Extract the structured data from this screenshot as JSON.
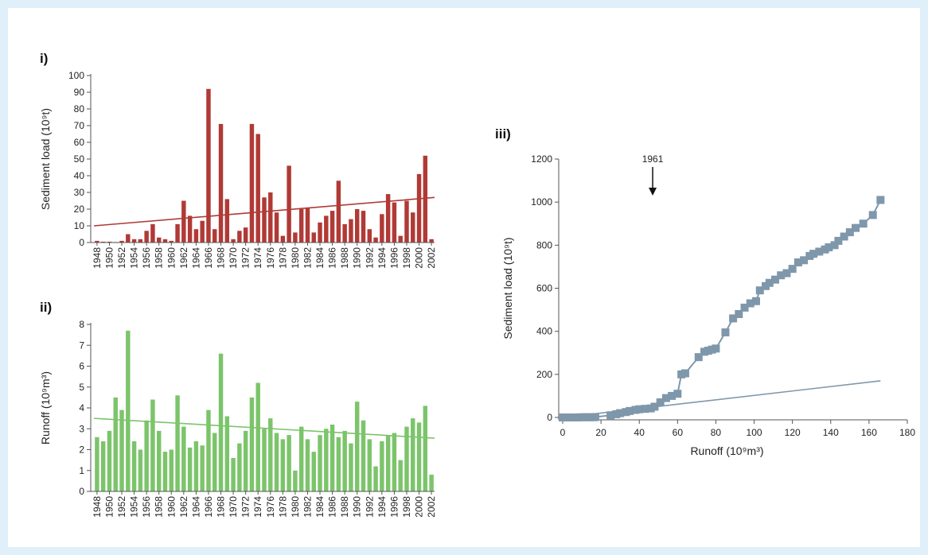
{
  "panels": {
    "i": "i)",
    "ii": "ii)",
    "iii": "iii)"
  },
  "colors": {
    "sediment": "#b03a36",
    "runoff": "#7cc46b",
    "cumulative": "#7f97ab",
    "axis": "#555555"
  },
  "chart_data": [
    {
      "id": "sediment",
      "type": "bar",
      "panel": "i)",
      "ylabel": "Sediment load (10⁹t)",
      "ylim": [
        0,
        100
      ],
      "yticks": [
        0,
        10,
        20,
        30,
        40,
        50,
        60,
        70,
        80,
        90,
        100
      ],
      "xtick_labels": [
        "1948",
        "1950",
        "1952",
        "1954",
        "1956",
        "1958",
        "1960",
        "1962",
        "1964",
        "1966",
        "1968",
        "1970",
        "1972",
        "1974",
        "1976",
        "1978",
        "1980",
        "1982",
        "1984",
        "1986",
        "1988",
        "1990",
        "1992",
        "1994",
        "1996",
        "1998",
        "2000",
        "2002"
      ],
      "categories": [
        1948,
        1949,
        1950,
        1951,
        1952,
        1953,
        1954,
        1955,
        1956,
        1957,
        1958,
        1959,
        1960,
        1961,
        1962,
        1963,
        1964,
        1965,
        1966,
        1967,
        1968,
        1969,
        1970,
        1971,
        1972,
        1973,
        1974,
        1975,
        1976,
        1977,
        1978,
        1979,
        1980,
        1981,
        1982,
        1983,
        1984,
        1985,
        1986,
        1987,
        1988,
        1989,
        1990,
        1991,
        1992,
        1993,
        1994,
        1995,
        1996,
        1997,
        1998,
        1999,
        2000,
        2001,
        2002
      ],
      "values": [
        1,
        0.5,
        0.5,
        0.3,
        1,
        5,
        2,
        2,
        7,
        11,
        3,
        2,
        1,
        11,
        25,
        16,
        8,
        13,
        92,
        8,
        71,
        26,
        2,
        7,
        9,
        71,
        65,
        27,
        30,
        18,
        4,
        46,
        6,
        20,
        21,
        6,
        12,
        16,
        19,
        37,
        11,
        14,
        20,
        19,
        8,
        3,
        17,
        29,
        24,
        4,
        25,
        18,
        41,
        52,
        2
      ],
      "trend": [
        10,
        27
      ],
      "grid": false
    },
    {
      "id": "runoff",
      "type": "bar",
      "panel": "ii)",
      "ylabel": "Runoff (10⁹m³)",
      "ylim": [
        0,
        8
      ],
      "yticks": [
        0,
        1,
        2,
        3,
        4,
        5,
        6,
        7,
        8
      ],
      "xtick_labels": [
        "1948",
        "1950",
        "1952",
        "1954",
        "1956",
        "1958",
        "1960",
        "1962",
        "1964",
        "1966",
        "1968",
        "1970",
        "1972",
        "1974",
        "1976",
        "1978",
        "1980",
        "1982",
        "1984",
        "1986",
        "1988",
        "1990",
        "1992",
        "1994",
        "1996",
        "1998",
        "2000",
        "2002"
      ],
      "categories": [
        1948,
        1949,
        1950,
        1951,
        1952,
        1953,
        1954,
        1955,
        1956,
        1957,
        1958,
        1959,
        1960,
        1961,
        1962,
        1963,
        1964,
        1965,
        1966,
        1967,
        1968,
        1969,
        1970,
        1971,
        1972,
        1973,
        1974,
        1975,
        1976,
        1977,
        1978,
        1979,
        1980,
        1981,
        1982,
        1983,
        1984,
        1985,
        1986,
        1987,
        1988,
        1989,
        1990,
        1991,
        1992,
        1993,
        1994,
        1995,
        1996,
        1997,
        1998,
        1999,
        2000,
        2001,
        2002
      ],
      "values": [
        2.6,
        2.4,
        2.9,
        4.5,
        3.9,
        7.7,
        2.4,
        2.0,
        3.4,
        4.4,
        2.9,
        1.9,
        2.0,
        4.6,
        3.1,
        2.1,
        2.4,
        2.2,
        3.9,
        2.8,
        6.6,
        3.6,
        1.6,
        2.3,
        2.9,
        4.5,
        5.2,
        3.0,
        3.5,
        2.8,
        2.5,
        2.7,
        1.0,
        3.1,
        2.5,
        1.9,
        2.7,
        3.0,
        3.2,
        2.6,
        2.9,
        2.3,
        4.3,
        3.4,
        2.5,
        1.2,
        2.4,
        2.7,
        2.8,
        1.5,
        3.1,
        3.5,
        3.3,
        4.1,
        0.8
      ],
      "trend": [
        3.5,
        2.55
      ],
      "grid": false
    },
    {
      "id": "cumulative",
      "type": "scatter",
      "panel": "iii)",
      "xlabel": "Runoff (10⁹m³)",
      "ylabel": "Sediment load (10⁹t)",
      "xlim": [
        0,
        180
      ],
      "ylim": [
        0,
        1200
      ],
      "xticks": [
        0,
        20,
        40,
        60,
        80,
        100,
        120,
        140,
        160,
        180
      ],
      "yticks": [
        0,
        200,
        400,
        600,
        800,
        1000,
        1200
      ],
      "annotation": "1961",
      "annotation_x": 47,
      "x": [
        0,
        2,
        4,
        6,
        8,
        10,
        12,
        14,
        16,
        17,
        25,
        28,
        30,
        33,
        35,
        38,
        40,
        43,
        46,
        48,
        51,
        54,
        57,
        60,
        62,
        64,
        71,
        74,
        76,
        78,
        80,
        85,
        89,
        92,
        95,
        98,
        101,
        103,
        106,
        108,
        111,
        114,
        117,
        120,
        123,
        126,
        129,
        131,
        134,
        137,
        139,
        142,
        144,
        147,
        150,
        153,
        157,
        162,
        166
      ],
      "y": [
        0,
        0,
        0,
        0,
        0,
        1,
        1,
        1,
        1,
        2,
        10,
        15,
        20,
        25,
        30,
        35,
        38,
        40,
        42,
        50,
        70,
        90,
        100,
        110,
        200,
        205,
        280,
        305,
        310,
        315,
        320,
        395,
        460,
        480,
        510,
        530,
        540,
        590,
        610,
        625,
        640,
        660,
        670,
        690,
        720,
        730,
        750,
        760,
        770,
        780,
        790,
        800,
        820,
        840,
        860,
        880,
        900,
        940,
        1010
      ],
      "trend_x": [
        0,
        166
      ],
      "trend_y": [
        0,
        170
      ],
      "grid": false
    }
  ]
}
